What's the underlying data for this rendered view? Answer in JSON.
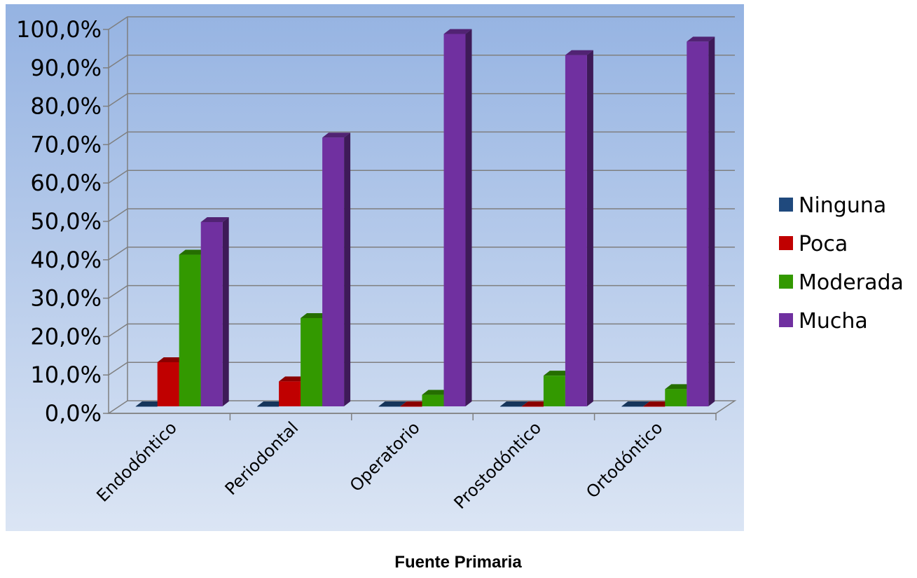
{
  "chart_data": {
    "type": "bar",
    "title": "",
    "xlabel": "",
    "ylabel": "",
    "categories": [
      "Endodóntico",
      "Periodontal",
      "Operatorio",
      "Prostodóntico",
      "Ortodóntico"
    ],
    "series": [
      {
        "name": "Ninguna",
        "color": "#1f497d",
        "values": [
          0,
          0,
          0,
          0,
          0
        ]
      },
      {
        "name": "Poca",
        "color": "#c00000",
        "values": [
          11.5,
          6.5,
          0,
          0,
          0
        ]
      },
      {
        "name": "Moderada",
        "color": "#339900",
        "values": [
          39.5,
          23,
          3,
          8,
          4.5
        ]
      },
      {
        "name": "Mucha",
        "color": "#7030a0",
        "values": [
          48,
          70,
          97,
          91.5,
          95
        ]
      }
    ],
    "ylim": [
      0,
      100
    ],
    "yticks": [
      "0,0%",
      "10,0%",
      "20,0%",
      "30,0%",
      "40,0%",
      "50,0%",
      "60,0%",
      "70,0%",
      "80,0%",
      "90,0%",
      "100,0%"
    ],
    "grid": true,
    "legend_position": "right",
    "chart_style": "3d-clustered-column",
    "background_gradient": [
      "#95b3e2",
      "#dbe5f4"
    ]
  },
  "footer": {
    "source_label": "Fuente Primaria"
  }
}
